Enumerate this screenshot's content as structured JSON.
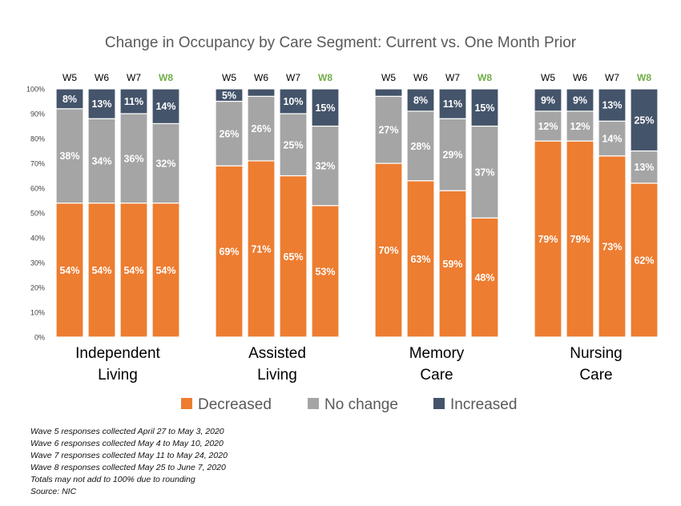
{
  "chart_data": {
    "type": "bar",
    "stacked": true,
    "title": "Change in Occupancy by Care Segment: Current vs. One Month Prior",
    "y_ticks": [
      "0%",
      "10%",
      "20%",
      "30%",
      "40%",
      "50%",
      "60%",
      "70%",
      "80%",
      "90%",
      "100%"
    ],
    "ylim": [
      0,
      100
    ],
    "grid": false,
    "legend_position": "bottom",
    "wave_labels": [
      "W5",
      "W6",
      "W7",
      "W8"
    ],
    "highlight_wave": "W8",
    "colors": {
      "Decreased": "#ED7D31",
      "No change": "#A5A5A5",
      "Increased": "#44546A",
      "highlight_wave": "#70AD47"
    },
    "series_names": [
      "Decreased",
      "No change",
      "Increased"
    ],
    "groups": [
      {
        "label_lines": [
          "Independent",
          "Living"
        ],
        "bars": [
          {
            "wave": "W5",
            "values": [
              54,
              38,
              8
            ],
            "labels": [
              "54%",
              "38%",
              "8%"
            ]
          },
          {
            "wave": "W6",
            "values": [
              54,
              34,
              13
            ],
            "labels": [
              "54%",
              "34%",
              "13%"
            ]
          },
          {
            "wave": "W7",
            "values": [
              54,
              36,
              11
            ],
            "labels": [
              "54%",
              "36%",
              "11%"
            ]
          },
          {
            "wave": "W8",
            "values": [
              54,
              32,
              14
            ],
            "labels": [
              "54%",
              "32%",
              "14%"
            ]
          }
        ]
      },
      {
        "label_lines": [
          "Assisted",
          "Living"
        ],
        "bars": [
          {
            "wave": "W5",
            "values": [
              69,
              26,
              5
            ],
            "labels": [
              "69%",
              "26%",
              "5%"
            ]
          },
          {
            "wave": "W6",
            "values": [
              71,
              26,
              3
            ],
            "labels": [
              "71%",
              "26%",
              ""
            ]
          },
          {
            "wave": "W7",
            "values": [
              65,
              25,
              10
            ],
            "labels": [
              "65%",
              "25%",
              "10%"
            ]
          },
          {
            "wave": "W8",
            "values": [
              53,
              32,
              15
            ],
            "labels": [
              "53%",
              "32%",
              "15%"
            ]
          }
        ]
      },
      {
        "label_lines": [
          "Memory",
          "Care"
        ],
        "bars": [
          {
            "wave": "W5",
            "values": [
              70,
              27,
              3
            ],
            "labels": [
              "70%",
              "27%",
              ""
            ]
          },
          {
            "wave": "W6",
            "values": [
              63,
              28,
              8
            ],
            "labels": [
              "63%",
              "28%",
              "8%"
            ]
          },
          {
            "wave": "W7",
            "values": [
              59,
              29,
              11
            ],
            "labels": [
              "59%",
              "29%",
              "11%"
            ]
          },
          {
            "wave": "W8",
            "values": [
              48,
              37,
              15
            ],
            "labels": [
              "48%",
              "37%",
              "15%"
            ]
          }
        ]
      },
      {
        "label_lines": [
          "Nursing",
          "Care"
        ],
        "bars": [
          {
            "wave": "W5",
            "values": [
              79,
              12,
              9
            ],
            "labels": [
              "79%",
              "12%",
              "9%"
            ]
          },
          {
            "wave": "W6",
            "values": [
              79,
              12,
              9
            ],
            "labels": [
              "79%",
              "12%",
              "9%"
            ]
          },
          {
            "wave": "W7",
            "values": [
              73,
              14,
              13
            ],
            "labels": [
              "73%",
              "14%",
              "13%"
            ]
          },
          {
            "wave": "W8",
            "values": [
              62,
              13,
              25
            ],
            "labels": [
              "62%",
              "13%",
              "25%"
            ]
          }
        ]
      }
    ]
  },
  "notes": [
    "Wave 5 responses collected April 27 to May 3, 2020",
    "Wave 6 responses collected May 4 to May 10, 2020",
    "Wave 7 responses collected May 11 to May 24, 2020",
    "Wave 8 responses collected May 25 to June 7, 2020",
    "Totals may not add to 100% due to rounding",
    "Source: NIC"
  ]
}
